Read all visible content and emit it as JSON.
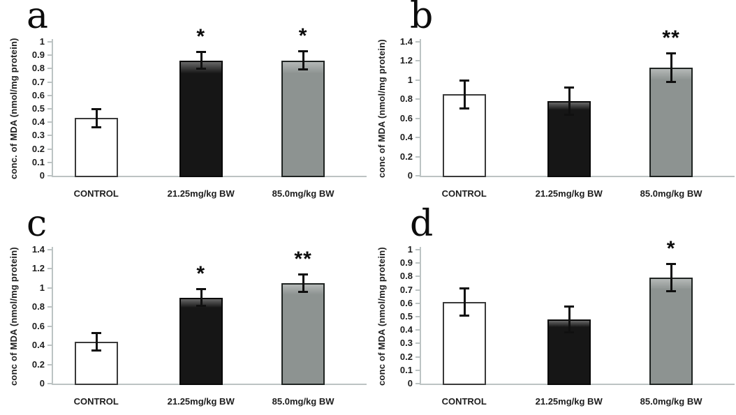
{
  "background_color": "#ffffff",
  "chart_data": [
    {
      "type": "bar",
      "panel_label": "a",
      "ylabel": "conc. of MDA (nmol/mg protein)",
      "xlabel": "",
      "ylim": [
        0,
        1
      ],
      "ystep": 0.1,
      "yticks": [
        "1",
        "0.9",
        "0.8",
        "0.7",
        "0.6",
        "0.5",
        "0.4",
        "0.3",
        "0.2",
        "0.1",
        "0"
      ],
      "categories": [
        "CONTROL",
        "21.25mg/kg BW",
        "85.0mg/kg BW"
      ],
      "values": [
        0.43,
        0.86,
        0.86
      ],
      "errors": [
        0.07,
        0.065,
        0.07
      ],
      "significance": [
        "",
        "*",
        "*"
      ],
      "bar_colors": [
        "#ffffff",
        "#161616",
        "#8d9391"
      ],
      "bar_border_colors": [
        "#3a3a3a",
        "#0a0a0a",
        "#1f2422"
      ],
      "grid": false,
      "legend": false
    },
    {
      "type": "bar",
      "panel_label": "b",
      "ylabel": "conc of MDA (nmol/mg protein)",
      "xlabel": "",
      "ylim": [
        0,
        1.4
      ],
      "ystep": 0.2,
      "yticks": [
        "1.4",
        "1.2",
        "1",
        "0.8",
        "0.6",
        "0.4",
        "0.2",
        "0"
      ],
      "categories": [
        "CONTROL",
        "21.25mg/kg BW",
        "85.0mg/kg BW"
      ],
      "values": [
        0.85,
        0.78,
        1.13
      ],
      "errors": [
        0.15,
        0.145,
        0.15
      ],
      "significance": [
        "",
        "",
        "**"
      ],
      "bar_colors": [
        "#ffffff",
        "#161616",
        "#8d9391"
      ],
      "bar_border_colors": [
        "#3a3a3a",
        "#0a0a0a",
        "#1f2422"
      ],
      "grid": false,
      "legend": false
    },
    {
      "type": "bar",
      "panel_label": "c",
      "ylabel": "conc of MDA (nmol/mg protein)",
      "xlabel": "",
      "ylim": [
        0,
        1.4
      ],
      "ystep": 0.2,
      "yticks": [
        "1.4",
        "1.2",
        "1",
        "0.8",
        "0.6",
        "0.4",
        "0.2",
        "0"
      ],
      "categories": [
        "CONTROL",
        "21.25mg/kg BW",
        "85.0mg/kg BW"
      ],
      "values": [
        0.44,
        0.9,
        1.05
      ],
      "errors": [
        0.095,
        0.09,
        0.095
      ],
      "significance": [
        "",
        "*",
        "**"
      ],
      "bar_colors": [
        "#ffffff",
        "#161616",
        "#8d9391"
      ],
      "bar_border_colors": [
        "#3a3a3a",
        "#0a0a0a",
        "#1f2422"
      ],
      "grid": false,
      "legend": false
    },
    {
      "type": "bar",
      "panel_label": "d",
      "ylabel": "conc of MDA (nmol/mg protein)",
      "xlabel": "",
      "ylim": [
        0,
        1
      ],
      "ystep": 0.1,
      "yticks": [
        "1",
        "0.9",
        "0.8",
        "0.7",
        "0.6",
        "0.5",
        "0.4",
        "0.3",
        "0.2",
        "0.1",
        "0"
      ],
      "categories": [
        "CONTROL",
        "21.25mg/kg BW",
        "85.0mg/kg BW"
      ],
      "values": [
        0.61,
        0.48,
        0.79
      ],
      "errors": [
        0.105,
        0.1,
        0.105
      ],
      "significance": [
        "",
        "",
        "*"
      ],
      "bar_colors": [
        "#ffffff",
        "#161616",
        "#8d9391"
      ],
      "bar_border_colors": [
        "#3a3a3a",
        "#0a0a0a",
        "#1f2422"
      ],
      "grid": false,
      "legend": false
    }
  ]
}
